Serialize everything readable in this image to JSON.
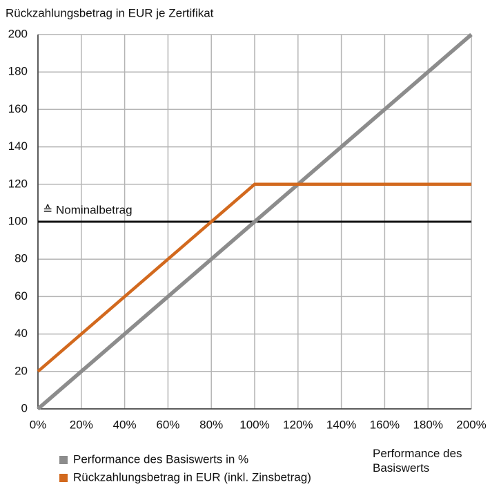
{
  "chart_data": {
    "type": "line",
    "title": "Rückzahlungsbetrag in EUR je Zertifikat",
    "x_label": "Performance des Basiswerts",
    "xlim": [
      0,
      200
    ],
    "ylim": [
      0,
      200
    ],
    "xticks": [
      {
        "value": 0,
        "label": "0%"
      },
      {
        "value": 20,
        "label": "20%"
      },
      {
        "value": 40,
        "label": "40%"
      },
      {
        "value": 60,
        "label": "60%"
      },
      {
        "value": 80,
        "label": "80%"
      },
      {
        "value": 100,
        "label": "100%"
      },
      {
        "value": 120,
        "label": "120%"
      },
      {
        "value": 140,
        "label": "140%"
      },
      {
        "value": 160,
        "label": "160%"
      },
      {
        "value": 180,
        "label": "180%"
      },
      {
        "value": 200,
        "label": "200%"
      }
    ],
    "yticks": [
      0,
      20,
      40,
      60,
      80,
      100,
      120,
      140,
      160,
      180,
      200
    ],
    "grid": true,
    "reference_line": {
      "value": 100,
      "label": "≙ Nominalbetrag",
      "color": "#111111"
    },
    "series": [
      {
        "name": "Performance des Basiswerts in %",
        "color": "#8c8c8c",
        "x": [
          0,
          200
        ],
        "values": [
          0,
          200
        ]
      },
      {
        "name": "Rückzahlungsbetrag in EUR (inkl. Zinsbetrag)",
        "color": "#d2691e",
        "x": [
          0,
          100,
          200
        ],
        "values": [
          20,
          120,
          120
        ]
      }
    ]
  }
}
